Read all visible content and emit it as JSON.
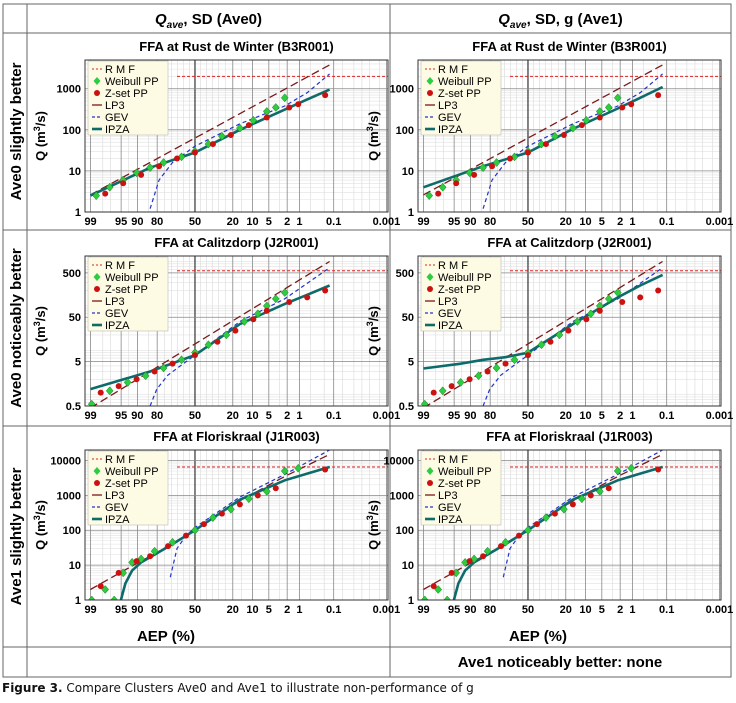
{
  "columns": [
    {
      "label_main": "Q",
      "label_sub": "ave",
      "label_rest": ", SD (Ave0)"
    },
    {
      "label_main": "Q",
      "label_sub": "ave",
      "label_rest": ", SD, g (Ave1)"
    }
  ],
  "rows": [
    {
      "label": "Ave0 slightly better"
    },
    {
      "label": "Ave0 noticeably better"
    },
    {
      "label": "Ave1 slightly better"
    }
  ],
  "xaxis_label": "AEP (%)",
  "ylabel_main": "Q (m",
  "ylabel_sup": "3",
  "ylabel_tail": "/s)",
  "footer_right": "Ave1 noticeably better: none",
  "caption_label": "Figure 3.",
  "caption_text": " Compare Clusters Ave0 and Ave1 to illustrate non-performance of g",
  "colors": {
    "rmf": "#e02020",
    "weibull": "#2ecc40",
    "zset": "#cc1111",
    "lp3": "#7a1a1a",
    "gev": "#2233cc",
    "ipza": "#0e6b6b",
    "legend_bg": "#fdfbe4"
  },
  "chart_data": [
    {
      "id": "r0c0",
      "type": "line",
      "title": "FFA at  Rust de Winter (B3R001)",
      "xlabel": "AEP (%)",
      "ylabel": "Q (m3/s)",
      "yscale": "log",
      "ylim": [
        1,
        5000
      ],
      "yticks": [
        1,
        10,
        100,
        1000
      ],
      "xticks": [
        "99",
        "95",
        "90",
        "80",
        "50",
        "20",
        "10",
        "5",
        "2",
        "1",
        "0.1",
        "0.001"
      ],
      "legend": [
        "R M F",
        "Weibull PP",
        "Z-set PP",
        "LP3",
        "GEV",
        "IPZA"
      ],
      "rmf": 2000,
      "series": [
        {
          "name": "LP3",
          "z": [
            -2.33,
            3.0
          ],
          "q": [
            2.6,
            3800
          ]
        },
        {
          "name": "GEV",
          "z": [
            -1.0,
            -0.8,
            -0.5,
            0,
            1,
            2,
            2.5,
            3.0
          ],
          "q": [
            1.2,
            6,
            16,
            40,
            140,
            380,
            800,
            2300
          ]
        },
        {
          "name": "IPZA",
          "z": [
            -2.33,
            -1,
            0,
            1,
            2,
            2.5,
            3.0
          ],
          "q": [
            2.5,
            12,
            28,
            100,
            310,
            550,
            950
          ]
        }
      ],
      "points_weibull": [
        [
          -2.2,
          2.5
        ],
        [
          -1.9,
          4
        ],
        [
          -1.6,
          6
        ],
        [
          -1.3,
          9
        ],
        [
          -1.0,
          12
        ],
        [
          -0.7,
          16
        ],
        [
          -0.3,
          22
        ],
        [
          0,
          30
        ],
        [
          0.3,
          45
        ],
        [
          0.6,
          70
        ],
        [
          1.0,
          110
        ],
        [
          1.3,
          170
        ],
        [
          1.6,
          280
        ],
        [
          1.8,
          350
        ],
        [
          2.0,
          600
        ]
      ],
      "points_zset": [
        [
          -2.0,
          2.8
        ],
        [
          -1.6,
          5
        ],
        [
          -1.2,
          8
        ],
        [
          -0.8,
          13
        ],
        [
          -0.4,
          20
        ],
        [
          0,
          28
        ],
        [
          0.4,
          45
        ],
        [
          0.8,
          75
        ],
        [
          1.2,
          130
        ],
        [
          1.6,
          200
        ],
        [
          2.1,
          350
        ],
        [
          2.3,
          420
        ],
        [
          2.9,
          700
        ]
      ]
    },
    {
      "id": "r0c1",
      "type": "line",
      "title": "FFA at  Rust de Winter (B3R001)",
      "xlabel": "AEP (%)",
      "ylabel": "Q (m3/s)",
      "yscale": "log",
      "ylim": [
        1,
        5000
      ],
      "yticks": [
        1,
        10,
        100,
        1000
      ],
      "xticks": [
        "99",
        "95",
        "90",
        "80",
        "50",
        "20",
        "10",
        "5",
        "2",
        "1",
        "0.1",
        "0.001"
      ],
      "legend": [
        "R M F",
        "Weibull PP",
        "Z-set PP",
        "LP3",
        "GEV",
        "IPZA"
      ],
      "rmf": 2000,
      "series": [
        {
          "name": "LP3",
          "z": [
            -2.33,
            3.0
          ],
          "q": [
            2.6,
            3800
          ]
        },
        {
          "name": "GEV",
          "z": [
            -1.0,
            -0.8,
            -0.5,
            0,
            1,
            2,
            2.5,
            3.0
          ],
          "q": [
            1.2,
            6,
            16,
            40,
            140,
            380,
            800,
            2300
          ]
        },
        {
          "name": "IPZA",
          "z": [
            -2.33,
            -1,
            0,
            1,
            2,
            2.5,
            3.0
          ],
          "q": [
            4,
            13,
            28,
            105,
            330,
            600,
            1100
          ]
        }
      ],
      "points_weibull": [
        [
          -2.2,
          2.5
        ],
        [
          -1.9,
          4
        ],
        [
          -1.6,
          6
        ],
        [
          -1.3,
          9
        ],
        [
          -1.0,
          12
        ],
        [
          -0.7,
          16
        ],
        [
          -0.3,
          22
        ],
        [
          0,
          30
        ],
        [
          0.3,
          45
        ],
        [
          0.6,
          70
        ],
        [
          1.0,
          110
        ],
        [
          1.3,
          170
        ],
        [
          1.6,
          280
        ],
        [
          1.8,
          350
        ],
        [
          2.0,
          600
        ]
      ],
      "points_zset": [
        [
          -2.0,
          2.8
        ],
        [
          -1.6,
          5
        ],
        [
          -1.2,
          8
        ],
        [
          -0.8,
          13
        ],
        [
          -0.4,
          20
        ],
        [
          0,
          28
        ],
        [
          0.4,
          45
        ],
        [
          0.8,
          75
        ],
        [
          1.2,
          130
        ],
        [
          1.6,
          200
        ],
        [
          2.1,
          350
        ],
        [
          2.3,
          420
        ],
        [
          2.9,
          700
        ]
      ]
    },
    {
      "id": "r1c0",
      "type": "line",
      "title": "FFA at  Calitzdorp (J2R001)",
      "xlabel": "AEP (%)",
      "ylabel": "Q (m3/s)",
      "yscale": "log",
      "ylim": [
        0.5,
        1200
      ],
      "yticks": [
        0.5,
        5,
        50,
        500
      ],
      "xticks": [
        "99",
        "95",
        "90",
        "80",
        "50",
        "20",
        "10",
        "5",
        "2",
        "1",
        "0.1",
        "0.001"
      ],
      "legend": [
        "R M F",
        "Weibull PP",
        "Z-set PP",
        "LP3",
        "GEV",
        "IPZA"
      ],
      "rmf": 560,
      "series": [
        {
          "name": "LP3",
          "z": [
            -2.33,
            3.0
          ],
          "q": [
            0.45,
            900
          ]
        },
        {
          "name": "GEV",
          "z": [
            -1.0,
            -0.85,
            -0.6,
            0,
            1,
            2,
            3.0
          ],
          "q": [
            0.5,
            1.2,
            2.5,
            7,
            40,
            130,
            650
          ]
        },
        {
          "name": "IPZA",
          "z": [
            -2.33,
            -1,
            0,
            1,
            2,
            2.5,
            3.0
          ],
          "q": [
            1.2,
            3,
            7,
            35,
            100,
            160,
            260
          ]
        }
      ],
      "points_weibull": [
        [
          -2.3,
          0.55
        ],
        [
          -1.9,
          1.1
        ],
        [
          -1.5,
          1.7
        ],
        [
          -1.1,
          2.4
        ],
        [
          -0.7,
          3.6
        ],
        [
          -0.3,
          5.5
        ],
        [
          0,
          8
        ],
        [
          0.3,
          12
        ],
        [
          0.7,
          20
        ],
        [
          1.1,
          40
        ],
        [
          1.4,
          60
        ],
        [
          1.6,
          90
        ],
        [
          1.8,
          130
        ],
        [
          2.0,
          180
        ]
      ],
      "points_zset": [
        [
          -2.1,
          1.0
        ],
        [
          -1.7,
          1.4
        ],
        [
          -1.3,
          2.0
        ],
        [
          -0.9,
          3.0
        ],
        [
          -0.5,
          4.5
        ],
        [
          0,
          7
        ],
        [
          0.5,
          14
        ],
        [
          0.9,
          25
        ],
        [
          1.3,
          45
        ],
        [
          1.6,
          70
        ],
        [
          2.1,
          110
        ],
        [
          2.5,
          140
        ],
        [
          2.9,
          200
        ]
      ]
    },
    {
      "id": "r1c1",
      "type": "line",
      "title": "FFA at  Calitzdorp (J2R001)",
      "xlabel": "AEP (%)",
      "ylabel": "Q (m3/s)",
      "yscale": "log",
      "ylim": [
        0.5,
        1200
      ],
      "yticks": [
        0.5,
        5,
        50,
        500
      ],
      "xticks": [
        "99",
        "95",
        "90",
        "80",
        "50",
        "20",
        "10",
        "5",
        "2",
        "1",
        "0.1",
        "0.001"
      ],
      "legend": [
        "R M F",
        "Weibull PP",
        "Z-set PP",
        "LP3",
        "GEV",
        "IPZA"
      ],
      "rmf": 560,
      "series": [
        {
          "name": "LP3",
          "z": [
            -2.33,
            3.0
          ],
          "q": [
            0.45,
            900
          ]
        },
        {
          "name": "GEV",
          "z": [
            -1.0,
            -0.85,
            -0.6,
            0,
            1,
            2,
            3.0
          ],
          "q": [
            0.5,
            1.2,
            2.5,
            7,
            40,
            130,
            650
          ]
        },
        {
          "name": "IPZA",
          "z": [
            -2.33,
            -1.5,
            -1,
            -0.5,
            0,
            1,
            2,
            2.5,
            3.0
          ],
          "q": [
            3.5,
            4.5,
            5.5,
            6.3,
            8,
            35,
            140,
            260,
            450
          ]
        }
      ],
      "points_weibull": [
        [
          -2.3,
          0.55
        ],
        [
          -1.9,
          1.1
        ],
        [
          -1.5,
          1.7
        ],
        [
          -1.1,
          2.4
        ],
        [
          -0.7,
          3.6
        ],
        [
          -0.3,
          5.5
        ],
        [
          0,
          8
        ],
        [
          0.3,
          12
        ],
        [
          0.7,
          20
        ],
        [
          1.1,
          40
        ],
        [
          1.4,
          60
        ],
        [
          1.6,
          90
        ],
        [
          1.8,
          130
        ],
        [
          2.0,
          180
        ]
      ],
      "points_zset": [
        [
          -2.1,
          1.0
        ],
        [
          -1.7,
          1.4
        ],
        [
          -1.3,
          2.0
        ],
        [
          -0.9,
          3.0
        ],
        [
          -0.5,
          4.5
        ],
        [
          0,
          7
        ],
        [
          0.5,
          14
        ],
        [
          0.9,
          25
        ],
        [
          1.3,
          45
        ],
        [
          1.6,
          70
        ],
        [
          2.1,
          110
        ],
        [
          2.5,
          140
        ],
        [
          2.9,
          200
        ]
      ]
    },
    {
      "id": "r2c0",
      "type": "line",
      "title": "FFA at  Floriskraal (J1R003)",
      "xlabel": "AEP (%)",
      "ylabel": "Q (m3/s)",
      "yscale": "log",
      "ylim": [
        1,
        20000
      ],
      "yticks": [
        1,
        10,
        100,
        1000,
        10000
      ],
      "xticks": [
        "99",
        "95",
        "90",
        "80",
        "50",
        "20",
        "10",
        "5",
        "2",
        "1",
        "0.1",
        "0.001"
      ],
      "legend": [
        "R M F",
        "Weibull PP",
        "Z-set PP",
        "LP3",
        "GEV",
        "IPZA"
      ],
      "rmf": 6500,
      "series": [
        {
          "name": "LP3",
          "z": [
            -2.33,
            -1.5,
            -0.8,
            0,
            1,
            2,
            3.0
          ],
          "q": [
            2,
            8,
            25,
            100,
            700,
            3500,
            15000
          ]
        },
        {
          "name": "GEV",
          "z": [
            -0.55,
            -0.4,
            -0.2,
            0,
            1,
            2,
            3.0
          ],
          "q": [
            4.5,
            30,
            70,
            120,
            900,
            4000,
            20000
          ]
        },
        {
          "name": "IPZA",
          "z": [
            -1.65,
            -1.55,
            -1.4,
            -1.2,
            -0.9,
            -0.5,
            0,
            1,
            2,
            2.5,
            3.0
          ],
          "q": [
            1,
            3,
            7,
            12,
            20,
            40,
            100,
            750,
            2700,
            4200,
            6500
          ]
        }
      ],
      "points_weibull": [
        [
          -2.3,
          1.0
        ],
        [
          -2.0,
          2
        ],
        [
          -1.8,
          1.0
        ],
        [
          -1.6,
          6
        ],
        [
          -1.4,
          12
        ],
        [
          -1.2,
          15
        ],
        [
          -0.9,
          25
        ],
        [
          -0.5,
          45
        ],
        [
          0,
          100
        ],
        [
          0.4,
          230
        ],
        [
          0.8,
          400
        ],
        [
          1.2,
          800
        ],
        [
          1.6,
          1300
        ],
        [
          2.0,
          5000
        ],
        [
          2.3,
          6000
        ]
      ],
      "points_zset": [
        [
          -2.1,
          2.5
        ],
        [
          -1.7,
          6
        ],
        [
          -1.3,
          13
        ],
        [
          -1.0,
          18
        ],
        [
          -0.6,
          35
        ],
        [
          -0.2,
          70
        ],
        [
          0.2,
          150
        ],
        [
          0.6,
          300
        ],
        [
          1.0,
          550
        ],
        [
          1.4,
          1000
        ],
        [
          1.8,
          1600
        ],
        [
          2.9,
          5500
        ]
      ]
    },
    {
      "id": "r2c1",
      "type": "line",
      "title": "FFA at  Floriskraal (J1R003)",
      "xlabel": "AEP (%)",
      "ylabel": "Q (m3/s)",
      "yscale": "log",
      "ylim": [
        1,
        20000
      ],
      "yticks": [
        1,
        10,
        100,
        1000,
        10000
      ],
      "xticks": [
        "99",
        "95",
        "90",
        "80",
        "50",
        "20",
        "10",
        "5",
        "2",
        "1",
        "0.1",
        "0.001"
      ],
      "legend": [
        "R M F",
        "Weibull PP",
        "Z-set PP",
        "LP3",
        "GEV",
        "IPZA"
      ],
      "rmf": 6500,
      "series": [
        {
          "name": "LP3",
          "z": [
            -2.33,
            -1.5,
            -0.8,
            0,
            1,
            2,
            3.0
          ],
          "q": [
            2,
            8,
            25,
            100,
            700,
            3500,
            15000
          ]
        },
        {
          "name": "GEV",
          "z": [
            -0.55,
            -0.4,
            -0.2,
            0,
            1,
            2,
            3.0
          ],
          "q": [
            4.5,
            30,
            70,
            120,
            900,
            4000,
            20000
          ]
        },
        {
          "name": "IPZA",
          "z": [
            -1.65,
            -1.55,
            -1.4,
            -1.2,
            -0.9,
            -0.5,
            0,
            1,
            2,
            2.5,
            3.0
          ],
          "q": [
            1,
            3,
            7,
            12,
            20,
            40,
            100,
            750,
            2700,
            4200,
            6500
          ]
        }
      ],
      "points_weibull": [
        [
          -2.3,
          1.0
        ],
        [
          -2.0,
          2
        ],
        [
          -1.8,
          1.0
        ],
        [
          -1.6,
          6
        ],
        [
          -1.4,
          12
        ],
        [
          -1.2,
          15
        ],
        [
          -0.9,
          25
        ],
        [
          -0.5,
          45
        ],
        [
          0,
          100
        ],
        [
          0.4,
          230
        ],
        [
          0.8,
          400
        ],
        [
          1.2,
          800
        ],
        [
          1.6,
          1300
        ],
        [
          2.0,
          5000
        ],
        [
          2.3,
          6000
        ]
      ],
      "points_zset": [
        [
          -2.1,
          2.5
        ],
        [
          -1.7,
          6
        ],
        [
          -1.3,
          13
        ],
        [
          -1.0,
          18
        ],
        [
          -0.6,
          35
        ],
        [
          -0.2,
          70
        ],
        [
          0.2,
          150
        ],
        [
          0.6,
          300
        ],
        [
          1.0,
          550
        ],
        [
          1.4,
          1000
        ],
        [
          1.8,
          1600
        ],
        [
          2.9,
          5500
        ]
      ]
    }
  ]
}
